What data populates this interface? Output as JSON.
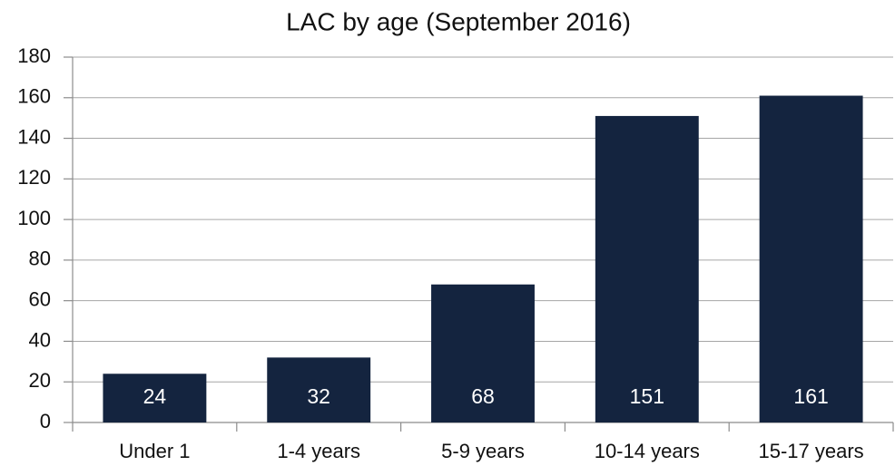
{
  "chart_data": {
    "type": "bar",
    "title": "LAC by age (September 2016)",
    "categories": [
      "Under 1",
      "1-4 years",
      "5-9 years",
      "10-14 years",
      "15-17 years"
    ],
    "values": [
      24,
      32,
      68,
      151,
      161
    ],
    "color": "#14243f",
    "ylim": [
      0,
      180
    ],
    "yticks": [
      0,
      20,
      40,
      60,
      80,
      100,
      120,
      140,
      160,
      180
    ],
    "grid": true
  }
}
